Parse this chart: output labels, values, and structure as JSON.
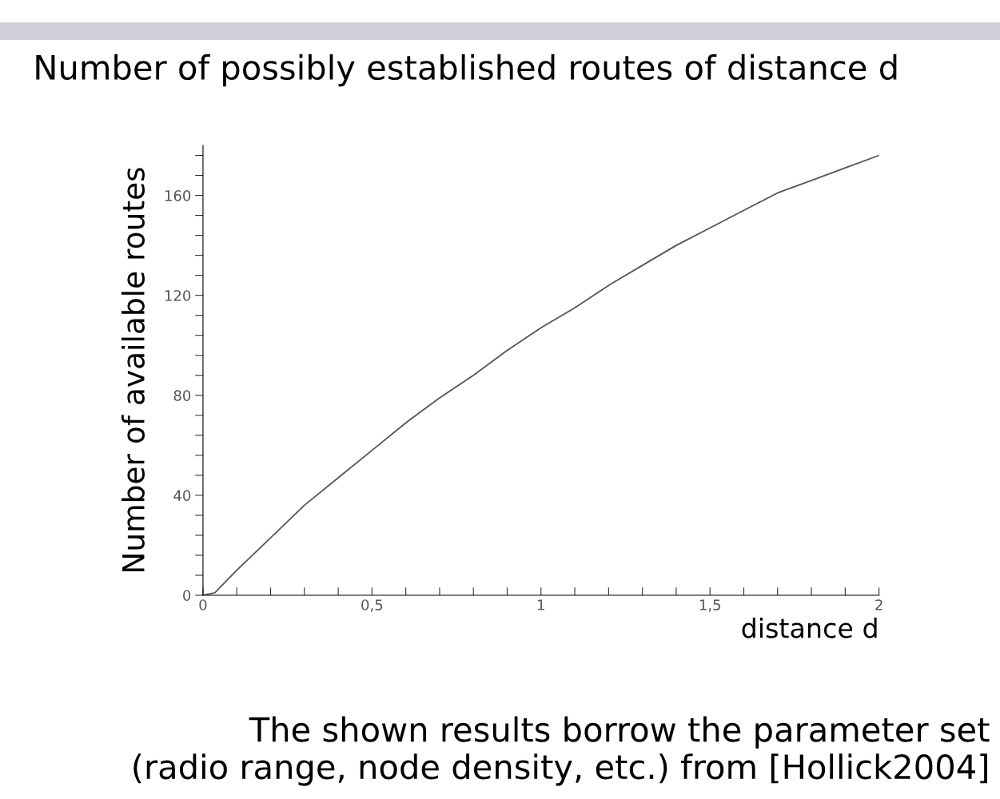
{
  "chart_data": {
    "type": "line",
    "title": "Number of possibly established routes of distance d",
    "xlabel": "distance d",
    "ylabel": "Number of available routes",
    "annotations": [
      "The shown results borrow the parameter set\n(radio range, node density, etc.) from [Hollick2004]"
    ],
    "x": [
      0,
      0.035,
      0.1,
      0.2,
      0.3,
      0.4,
      0.5,
      0.6,
      0.7,
      0.8,
      0.9,
      1.0,
      1.1,
      1.2,
      1.3,
      1.4,
      1.5,
      1.6,
      1.7,
      1.8,
      1.9,
      2.0
    ],
    "series": [
      {
        "color": "#555555",
        "values": [
          0,
          1,
          10,
          23,
          36,
          47,
          58,
          69,
          79,
          88,
          98,
          107,
          115,
          124,
          132,
          140,
          147,
          154,
          161,
          166,
          171,
          176
        ]
      }
    ],
    "xlim": [
      0,
      2
    ],
    "ylim": [
      0,
      180
    ],
    "xticks": [
      0,
      {
        "value": 0.1,
        "label": null
      },
      {
        "value": 0.2,
        "label": null
      },
      {
        "value": 0.3,
        "label": null
      },
      {
        "value": 0.4,
        "label": null
      },
      {
        "value": 0.5,
        "label": "0,5"
      },
      {
        "value": 0.6,
        "label": null
      },
      {
        "value": 0.7,
        "label": null
      },
      {
        "value": 0.8,
        "label": null
      },
      {
        "value": 0.9,
        "label": null
      },
      1,
      {
        "value": 1.1,
        "label": null
      },
      {
        "value": 1.2,
        "label": null
      },
      {
        "value": 1.3,
        "label": null
      },
      {
        "value": 1.4,
        "label": null
      },
      {
        "value": 1.5,
        "label": "1,5"
      },
      {
        "value": 1.6,
        "label": null
      },
      {
        "value": 1.7,
        "label": null
      },
      {
        "value": 1.8,
        "label": null
      },
      {
        "value": 1.9,
        "label": null
      },
      2
    ],
    "yticks": [
      0,
      {
        "value": 8,
        "label": null
      },
      {
        "value": 16,
        "label": null
      },
      {
        "value": 24,
        "label": null
      },
      {
        "value": 32,
        "label": null
      },
      40,
      {
        "value": 48,
        "label": null
      },
      {
        "value": 56,
        "label": null
      },
      {
        "value": 64,
        "label": null
      },
      {
        "value": 72,
        "label": null
      },
      80,
      {
        "value": 88,
        "label": null
      },
      {
        "value": 96,
        "label": null
      },
      {
        "value": 104,
        "label": null
      },
      {
        "value": 112,
        "label": null
      },
      120,
      {
        "value": 128,
        "label": null
      },
      {
        "value": 136,
        "label": null
      },
      {
        "value": 144,
        "label": null
      },
      {
        "value": 152,
        "label": null
      },
      160,
      {
        "value": 168,
        "label": null
      },
      {
        "value": 176,
        "label": null
      }
    ],
    "grid": false,
    "legend": false,
    "marker": "none",
    "line_style": "solid"
  }
}
